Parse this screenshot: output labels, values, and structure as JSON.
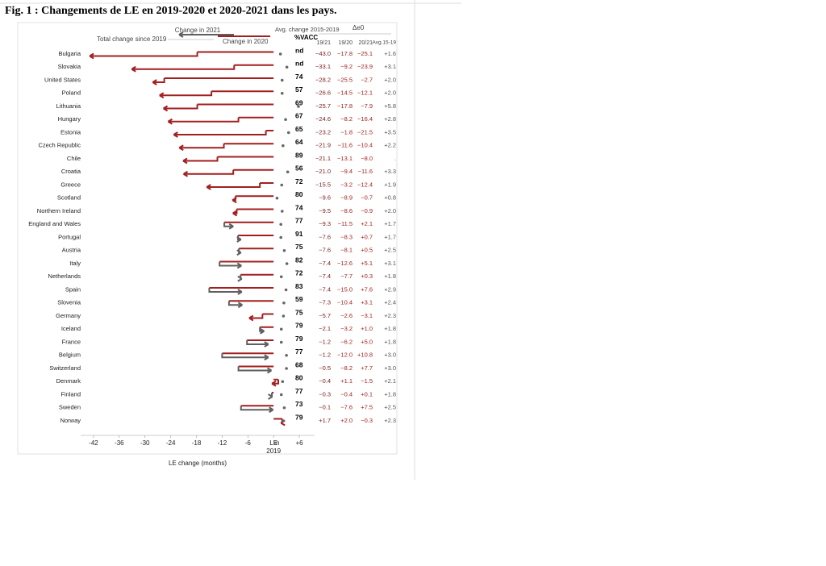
{
  "chart_data": {
    "type": "arrow",
    "title": "Fig. 1 : Changements de LE en 2019-2020 et 2020-2021 dans les pays.",
    "xlabel": "LE change (months)",
    "categories": [
      "Bulgaria",
      "Slovakia",
      "United States",
      "Poland",
      "Lithuania",
      "Hungary",
      "Estonia",
      "Czech Republic",
      "Chile",
      "Croatia",
      "Greece",
      "Scotland",
      "Northern Ireland",
      "England and Wales",
      "Portugal",
      "Austria",
      "Italy",
      "Netherlands",
      "Spain",
      "Slovenia",
      "Germany",
      "Iceland",
      "France",
      "Belgium",
      "Switzerland",
      "Denmark",
      "Finland",
      "Sweden",
      "Norway"
    ],
    "series": [
      {
        "name": "Total change since 2019",
        "header": "19/21",
        "color": "#7a1a1a",
        "values": [
          -43.0,
          -33.1,
          -28.2,
          -26.6,
          -25.7,
          -24.6,
          -23.2,
          -21.9,
          -21.1,
          -21.0,
          -15.5,
          -9.6,
          -9.5,
          -9.3,
          -7.6,
          -7.6,
          -7.4,
          -7.4,
          -7.4,
          -7.3,
          -5.7,
          -2.1,
          -1.2,
          -1.2,
          -0.5,
          -0.4,
          -0.3,
          -0.1,
          1.7
        ],
        "value_labels": [
          "−43.0",
          "−33.1",
          "−28.2",
          "−26.6",
          "−25.7",
          "−24.6",
          "−23.2",
          "−21.9",
          "−21.1",
          "−21.0",
          "−15.5",
          "−9.6",
          "−9.5",
          "−9.3",
          "−7.6",
          "−7.6",
          "−7.4",
          "−7.4",
          "−7.4",
          "−7.3",
          "−5.7",
          "−2.1",
          "−1.2",
          "−1.2",
          "−0.5",
          "−0.4",
          "−0.3",
          "−0.1",
          "+1.7"
        ]
      },
      {
        "name": "Change in 2020",
        "header": "19/20",
        "color": "#a31f1f",
        "values": [
          -17.8,
          -9.2,
          -25.5,
          -14.5,
          -17.8,
          -8.2,
          -1.8,
          -11.6,
          -13.1,
          -9.4,
          -3.2,
          -8.9,
          -8.6,
          -11.5,
          -8.3,
          -8.1,
          -12.6,
          -7.7,
          -15.0,
          -10.4,
          -2.6,
          -3.2,
          -6.2,
          -12.0,
          -8.2,
          1.1,
          -0.4,
          -7.6,
          2.0
        ],
        "value_labels": [
          "−17.8",
          "−9.2",
          "−25.5",
          "−14.5",
          "−17.8",
          "−8.2",
          "−1.8",
          "−11.6",
          "−13.1",
          "−9.4",
          "−3.2",
          "−8.9",
          "−8.6",
          "−11.5",
          "−8.3",
          "−8.1",
          "−12.6",
          "−7.7",
          "−15.0",
          "−10.4",
          "−2.6",
          "−3.2",
          "−6.2",
          "−12.0",
          "−8.2",
          "+1.1",
          "−0.4",
          "−7.6",
          "+2.0"
        ]
      },
      {
        "name": "Change in 2021",
        "header": "20/21",
        "color": "#a31f1f",
        "color_gain": "#5f5f5f",
        "values": [
          -25.1,
          -23.9,
          -2.7,
          -12.1,
          -7.9,
          -16.4,
          -21.5,
          -10.4,
          -8.0,
          -11.6,
          -12.4,
          -0.7,
          -0.9,
          2.1,
          0.7,
          0.5,
          5.1,
          0.3,
          7.6,
          3.1,
          -3.1,
          1.0,
          5.0,
          10.8,
          7.7,
          -1.5,
          0.1,
          7.5,
          -0.3
        ],
        "value_labels": [
          "−25.1",
          "−23.9",
          "−2.7",
          "−12.1",
          "−7.9",
          "−16.4",
          "−21.5",
          "−10.4",
          "−8.0",
          "−11.6",
          "−12.4",
          "−0.7",
          "−0.9",
          "+2.1",
          "+0.7",
          "+0.5",
          "+5.1",
          "+0.3",
          "+7.6",
          "+3.1",
          "−3.1",
          "+1.0",
          "+5.0",
          "+10.8",
          "+7.7",
          "−1.5",
          "+0.1",
          "+7.5",
          "−0.3"
        ]
      },
      {
        "name": "Avg. change 2015-2019",
        "header": "Avg.15-19",
        "color": "#666666",
        "values": [
          1.6,
          3.1,
          2.0,
          2.0,
          5.8,
          2.8,
          3.5,
          2.2,
          null,
          3.3,
          1.9,
          0.8,
          2.0,
          1.7,
          1.7,
          2.5,
          3.1,
          1.8,
          2.9,
          2.4,
          2.3,
          1.8,
          1.8,
          3.0,
          3.0,
          2.1,
          1.8,
          2.5,
          2.3
        ],
        "value_labels": [
          "+1.6",
          "+3.1",
          "+2.0",
          "+2.0",
          "+5.8",
          "+2.8",
          "+3.5",
          "+2.2",
          ".",
          "+3.3",
          "+1.9",
          "+0.8",
          "+2.0",
          "+1.7",
          "+1.7",
          "+2.5",
          "+3.1",
          "+1.8",
          "+2.9",
          "+2.4",
          "+2.3",
          "+1.8",
          "+1.8",
          "+3.0",
          "+3.0",
          "+2.1",
          "+1.8",
          "+2.5",
          "+2.3"
        ]
      }
    ],
    "vaccination": {
      "name": "%VACC",
      "values": [
        null,
        null,
        74,
        57,
        69,
        67,
        65,
        64,
        89,
        56,
        72,
        80,
        74,
        77,
        91,
        75,
        82,
        72,
        83,
        59,
        75,
        79,
        79,
        77,
        68,
        80,
        77,
        73,
        79
      ],
      "value_labels": [
        "nd",
        "nd",
        "74",
        "57",
        "69",
        "67",
        "65",
        "64",
        "89",
        "56",
        "72",
        "80",
        "74",
        "77",
        "91",
        "75",
        "82",
        "72",
        "83",
        "59",
        "75",
        "79",
        "79",
        "77",
        "68",
        "80",
        "77",
        "73",
        "79"
      ]
    },
    "table_title": "Δe0",
    "xlim": [
      -45,
      9
    ],
    "xticks": [
      -42,
      -36,
      -30,
      -24,
      -18,
      -12,
      -6,
      {
        "value": 0,
        "label": "LE in 2019"
      },
      {
        "value": 6,
        "label": "+6"
      }
    ]
  }
}
